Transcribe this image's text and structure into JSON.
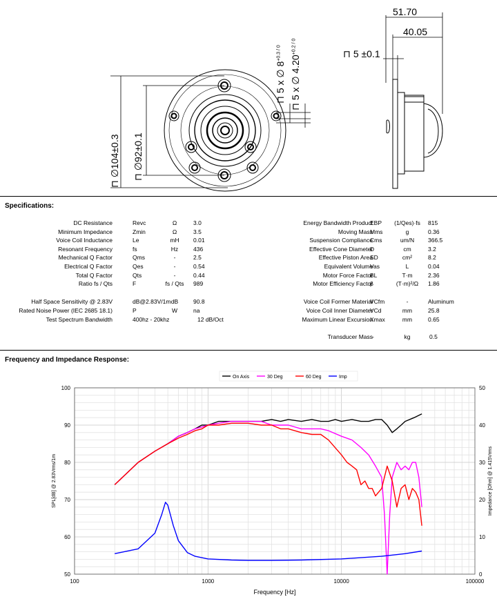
{
  "drawing": {
    "dim_overall_depth": "51.70",
    "dim_body_depth": "40.05",
    "dim_flange": "⊓ 5 ±0.1",
    "dim_hole_dia": "⊓ 5 x ∅ 8",
    "dim_hole_tol": "+0.3 / 0",
    "dim_hole2_dia": "⊓ 5 x ∅ 4.20",
    "dim_hole2_tol": "+0.2 / 0",
    "dim_outer": "⊓ ∅104±0.3",
    "dim_bolt_circle": "⊓ ∅92±0.1"
  },
  "specs": {
    "title": "Specifications:",
    "left": [
      {
        "label": "DC Resistance",
        "sym": "Revc",
        "unit": "Ω",
        "val": "3.0"
      },
      {
        "label": "Minimum Impedance",
        "sym": "Zmin",
        "unit": "Ω",
        "val": "3.5"
      },
      {
        "label": "Voice Coil Inductance",
        "sym": "Le",
        "unit": "mH",
        "val": "0.01"
      },
      {
        "label": "Resonant Frequency",
        "sym": "fs",
        "unit": "Hz",
        "val": "436"
      },
      {
        "label": "Mechanical Q Factor",
        "sym": "Qms",
        "unit": "-",
        "val": "2.5"
      },
      {
        "label": "Electrical Q Factor",
        "sym": "Qes",
        "unit": "-",
        "val": "0.54"
      },
      {
        "label": "Total Q Factor",
        "sym": "Qts",
        "unit": "-",
        "val": "0.44"
      },
      {
        "label": "Ratio fs / Qts",
        "sym": "F",
        "unit": "fs / Qts",
        "val": "989"
      }
    ],
    "left2": [
      {
        "label": "Half Space Sensitivity @ 2.83V",
        "sym": "dB@2.83V/1m",
        "unit": "dB",
        "val": "90.8"
      },
      {
        "label": "Rated Noise Power (IEC 2685 18.1)",
        "sym": "P",
        "unit": "W",
        "val": "na"
      }
    ],
    "bandwidth": {
      "label": "Test Spectrum Bandwidth",
      "range": "400hz - 20khz",
      "slope": "12 dB/Oct"
    },
    "right": [
      {
        "label": "Energy Bandwidth Product",
        "sym": "EBP",
        "unit": "(1/Qes)·fs",
        "val": "815"
      },
      {
        "label": "Moving Mass",
        "sym": "Mms",
        "unit": "g",
        "val": "0.36"
      },
      {
        "label": "Suspension Compliance",
        "sym": "Cms",
        "unit": "um/N",
        "val": "366.5"
      },
      {
        "label": "Effective Cone Diameter",
        "sym": "D",
        "unit": "cm",
        "val": "3.2"
      },
      {
        "label": "Effective Piston Area",
        "sym": "SD",
        "unit": "cm²",
        "val": "8.2"
      },
      {
        "label": "Equivalent Volume",
        "sym": "Vas",
        "unit": "L",
        "val": "0.04"
      },
      {
        "label": "Motor Force Factor",
        "sym": "BL",
        "unit": "T·m",
        "val": "2.36"
      },
      {
        "label": "Motor Efficiency Factor",
        "sym": "β",
        "unit": "(T·m)²/Ω",
        "val": "1.86"
      }
    ],
    "right2": [
      {
        "label": "Voice Coil Former Material",
        "sym": "VCfm",
        "unit": "-",
        "val": "Aluminum"
      },
      {
        "label": "Voice Coil Inner Diameter",
        "sym": "VCd",
        "unit": "mm",
        "val": "25.8"
      },
      {
        "label": "Maximum Linear Excursion",
        "sym": "Xmax",
        "unit": "mm",
        "val": "0.65"
      }
    ],
    "transducer": {
      "label": "Transducer Mass",
      "sym": "-",
      "unit": "kg",
      "val": "0.5"
    }
  },
  "response_title": "Frequency and Impedance Response:",
  "chart_data": {
    "type": "line",
    "xlabel": "Frequency [Hz]",
    "ylabel": "SPL[dB] @ 2.83Vrms/1m",
    "y2label": "Impedance [Ohm] @ 1.415Vrms",
    "xscale": "log",
    "xlim": [
      100,
      100000
    ],
    "ylim": [
      50,
      100
    ],
    "y2lim": [
      0,
      50
    ],
    "x_ticks": [
      "100",
      "1000",
      "10000",
      "100000"
    ],
    "y_ticks": [
      "50",
      "60",
      "70",
      "80",
      "90",
      "100"
    ],
    "y2_ticks": [
      "0",
      "10",
      "20",
      "30",
      "40",
      "50"
    ],
    "grid": true,
    "legend_position": "top-right",
    "series": [
      {
        "name": "On Axis",
        "color": "#000000",
        "axis": "left",
        "x": [
          200,
          300,
          400,
          500,
          600,
          700,
          800,
          900,
          1000,
          1200,
          1500,
          2000,
          2500,
          3000,
          3500,
          4000,
          5000,
          6000,
          7000,
          8000,
          9000,
          10000,
          12000,
          14000,
          16000,
          18000,
          20000,
          22000,
          24000,
          26000,
          28000,
          30000,
          35000,
          40000
        ],
        "y": [
          74,
          80,
          83,
          85,
          87,
          88,
          89,
          90,
          90,
          91,
          91,
          91,
          91,
          91.5,
          91,
          91.5,
          91,
          91.5,
          91,
          91,
          91.5,
          91,
          91.5,
          91,
          91,
          91.5,
          91.5,
          90,
          88,
          89,
          90,
          91,
          92,
          93
        ]
      },
      {
        "name": "30 Deg",
        "color": "#ff00ff",
        "axis": "left",
        "x": [
          200,
          300,
          400,
          500,
          600,
          700,
          800,
          900,
          1000,
          1200,
          1500,
          2000,
          2500,
          3000,
          3500,
          4000,
          5000,
          6000,
          7000,
          8000,
          10000,
          12000,
          14000,
          16000,
          18000,
          20000,
          21000,
          22000,
          23000,
          24000,
          26000,
          28000,
          30000,
          32000,
          34000,
          36000,
          38000,
          40000
        ],
        "y": [
          74,
          80,
          83,
          85,
          87,
          88,
          89,
          89.5,
          90,
          90.5,
          91,
          91,
          91,
          90,
          90,
          90,
          89,
          89,
          89,
          88.5,
          87,
          86,
          84,
          82,
          79,
          76,
          66,
          50,
          66,
          76,
          80,
          78,
          79,
          78,
          80,
          80,
          76,
          68
        ]
      },
      {
        "name": "60 Deg",
        "color": "#ff0000",
        "axis": "left",
        "x": [
          200,
          300,
          400,
          500,
          600,
          700,
          800,
          900,
          1000,
          1200,
          1500,
          2000,
          2500,
          3000,
          3500,
          4000,
          5000,
          6000,
          7000,
          8000,
          10000,
          11000,
          12000,
          13000,
          14000,
          15000,
          16000,
          17000,
          18000,
          20000,
          22000,
          24000,
          26000,
          28000,
          30000,
          32000,
          34000,
          36000,
          38000,
          40000
        ],
        "y": [
          74,
          80,
          83,
          85,
          86.5,
          87.5,
          88.5,
          89,
          90,
          90,
          90.5,
          90.5,
          90,
          90,
          89,
          89,
          88,
          87.5,
          87.5,
          86,
          82,
          80,
          79,
          78,
          74,
          75,
          73,
          73,
          71,
          73,
          79,
          75,
          68,
          73,
          74,
          70,
          73,
          72,
          70,
          63
        ]
      },
      {
        "name": "Imp",
        "color": "#0000ff",
        "axis": "right",
        "x": [
          200,
          300,
          400,
          450,
          480,
          500,
          550,
          600,
          700,
          800,
          1000,
          1500,
          2000,
          3000,
          5000,
          10000,
          20000,
          30000,
          40000
        ],
        "y": [
          5.5,
          6.8,
          11,
          16,
          19.3,
          18.5,
          13,
          9,
          5.8,
          4.8,
          4.1,
          3.8,
          3.7,
          3.7,
          3.8,
          4.1,
          4.8,
          5.5,
          6.2
        ]
      }
    ]
  }
}
